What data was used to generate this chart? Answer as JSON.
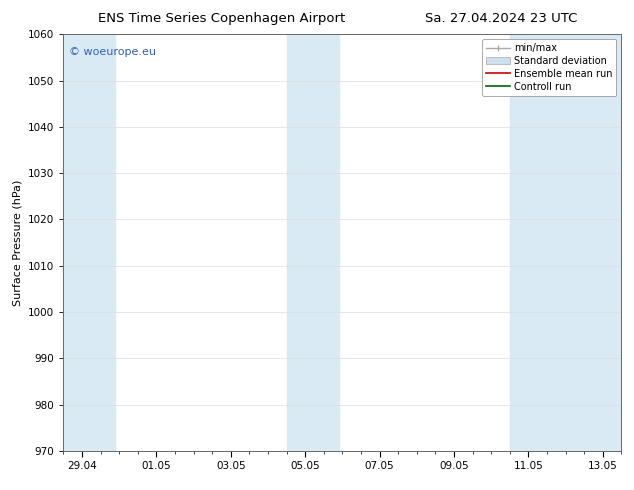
{
  "title_left": "ENS Time Series Copenhagen Airport",
  "title_right": "Sa. 27.04.2024 23 UTC",
  "ylabel": "Surface Pressure (hPa)",
  "ylim": [
    970,
    1060
  ],
  "yticks": [
    970,
    980,
    990,
    1000,
    1010,
    1020,
    1030,
    1040,
    1050,
    1060
  ],
  "xlabel_ticks": [
    "29.04",
    "01.05",
    "03.05",
    "05.05",
    "07.05",
    "09.05",
    "11.05",
    "13.05"
  ],
  "x_tick_positions": [
    0.0,
    2.0,
    4.0,
    6.0,
    8.0,
    10.0,
    12.0,
    14.0
  ],
  "shade_bands": [
    {
      "x_start": -0.5,
      "x_end": 0.9,
      "color": "#daeaf5"
    },
    {
      "x_start": 5.5,
      "x_end": 6.9,
      "color": "#daeaf5"
    },
    {
      "x_start": 11.5,
      "x_end": 14.5,
      "color": "#daeaf5"
    }
  ],
  "xlim": [
    -0.5,
    14.5
  ],
  "watermark": "© woeurope.eu",
  "watermark_color": "#3060bb",
  "legend_items": [
    {
      "label": "min/max",
      "color": "#aaaaaa",
      "type": "errorbar"
    },
    {
      "label": "Standard deviation",
      "color": "#cce0f0",
      "type": "rect"
    },
    {
      "label": "Ensemble mean run",
      "color": "#cc0000",
      "type": "line"
    },
    {
      "label": "Controll run",
      "color": "#006600",
      "type": "line"
    }
  ],
  "bg_color": "#ffffff",
  "grid_color": "#dddddd",
  "title_fontsize": 9.5,
  "axis_fontsize": 8,
  "tick_fontsize": 7.5,
  "legend_fontsize": 7
}
